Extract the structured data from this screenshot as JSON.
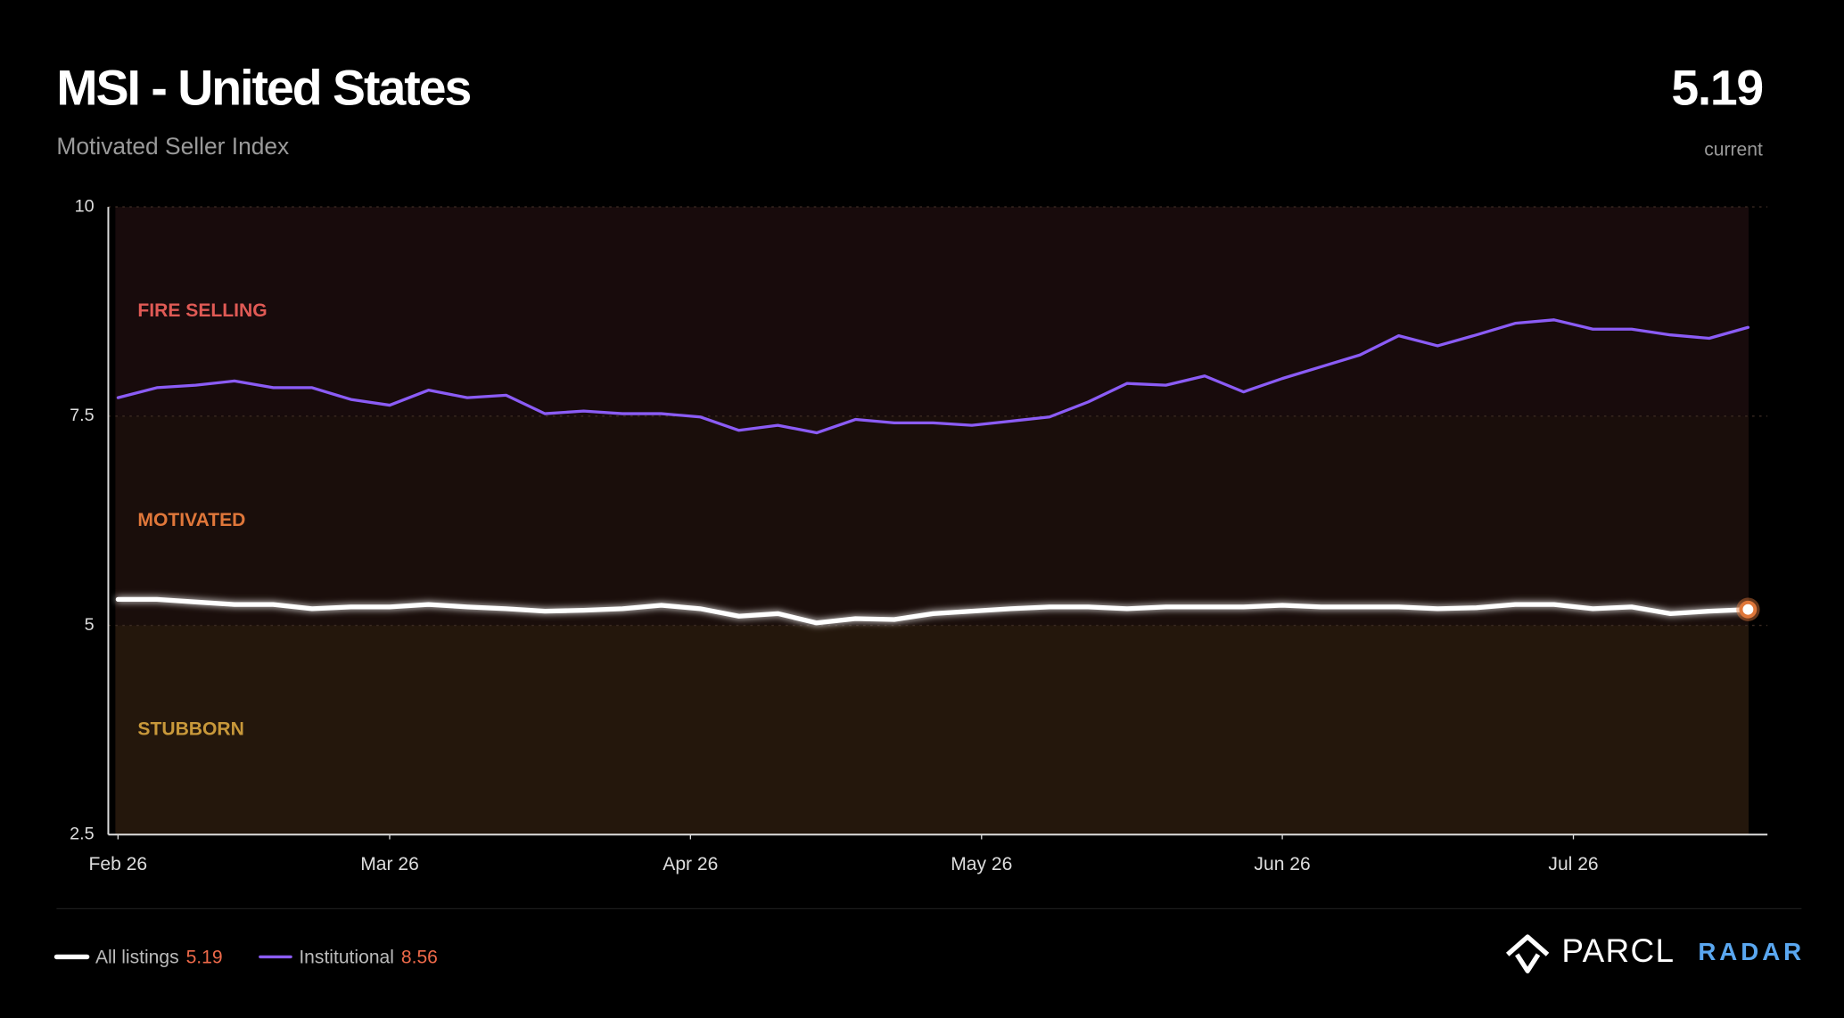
{
  "chart_data": {
    "type": "line",
    "title": "MSI - United States",
    "subtitle": "Motivated Seller Index",
    "current_label": "current",
    "brand": {
      "name": "PARCL",
      "product": "RADAR"
    },
    "zones": [
      {
        "label": "FIRE SELLING",
        "color": "#e05a55",
        "fill": "#180b0c"
      },
      {
        "label": "MOTIVATED",
        "color": "#e0773a",
        "fill": "#1a0e0b"
      },
      {
        "label": "STUBBORN",
        "color": "#c8983a",
        "fill": "#24170c"
      }
    ],
    "x": [
      0,
      4,
      8,
      12,
      16,
      20,
      24,
      28,
      32,
      36,
      40,
      44,
      48,
      52,
      56,
      60,
      64,
      68,
      72,
      76,
      80,
      84,
      88,
      92,
      96,
      100,
      104,
      108,
      112,
      116,
      120,
      124,
      128,
      132,
      136,
      140,
      144,
      148,
      152,
      156,
      160,
      164,
      168
    ],
    "xlim": [
      -1,
      170
    ],
    "xticks": [
      {
        "value": 0,
        "label": "Feb 26"
      },
      {
        "value": 28,
        "label": "Mar 26"
      },
      {
        "value": 59,
        "label": "Apr 26"
      },
      {
        "value": 89,
        "label": "May 26"
      },
      {
        "value": 120,
        "label": "Jun 26"
      },
      {
        "value": 150,
        "label": "Jul 26"
      }
    ],
    "ylim": [
      2.5,
      10
    ],
    "yticks": [
      10,
      7.5,
      5,
      2.5
    ],
    "series": [
      {
        "name": "All listings",
        "color": "#ffffff",
        "values": [
          5.31,
          5.31,
          5.28,
          5.25,
          5.25,
          5.2,
          5.22,
          5.22,
          5.25,
          5.22,
          5.2,
          5.17,
          5.18,
          5.2,
          5.24,
          5.2,
          5.11,
          5.14,
          5.03,
          5.08,
          5.07,
          5.14,
          5.17,
          5.2,
          5.22,
          5.22,
          5.2,
          5.22,
          5.22,
          5.22,
          5.24,
          5.22,
          5.22,
          5.22,
          5.2,
          5.21,
          5.25,
          5.25,
          5.2,
          5.22,
          5.14,
          5.17,
          5.19
        ]
      },
      {
        "name": "Institutional",
        "color": "#8b5cf6",
        "values": [
          7.72,
          7.84,
          7.87,
          7.92,
          7.84,
          7.84,
          7.7,
          7.63,
          7.81,
          7.72,
          7.75,
          7.53,
          7.56,
          7.53,
          7.53,
          7.49,
          7.33,
          7.39,
          7.3,
          7.46,
          7.42,
          7.42,
          7.39,
          7.44,
          7.49,
          7.67,
          7.89,
          7.87,
          7.98,
          7.79,
          7.95,
          8.09,
          8.23,
          8.46,
          8.34,
          8.47,
          8.61,
          8.65,
          8.54,
          8.54,
          8.47,
          8.43,
          8.56
        ]
      }
    ]
  }
}
